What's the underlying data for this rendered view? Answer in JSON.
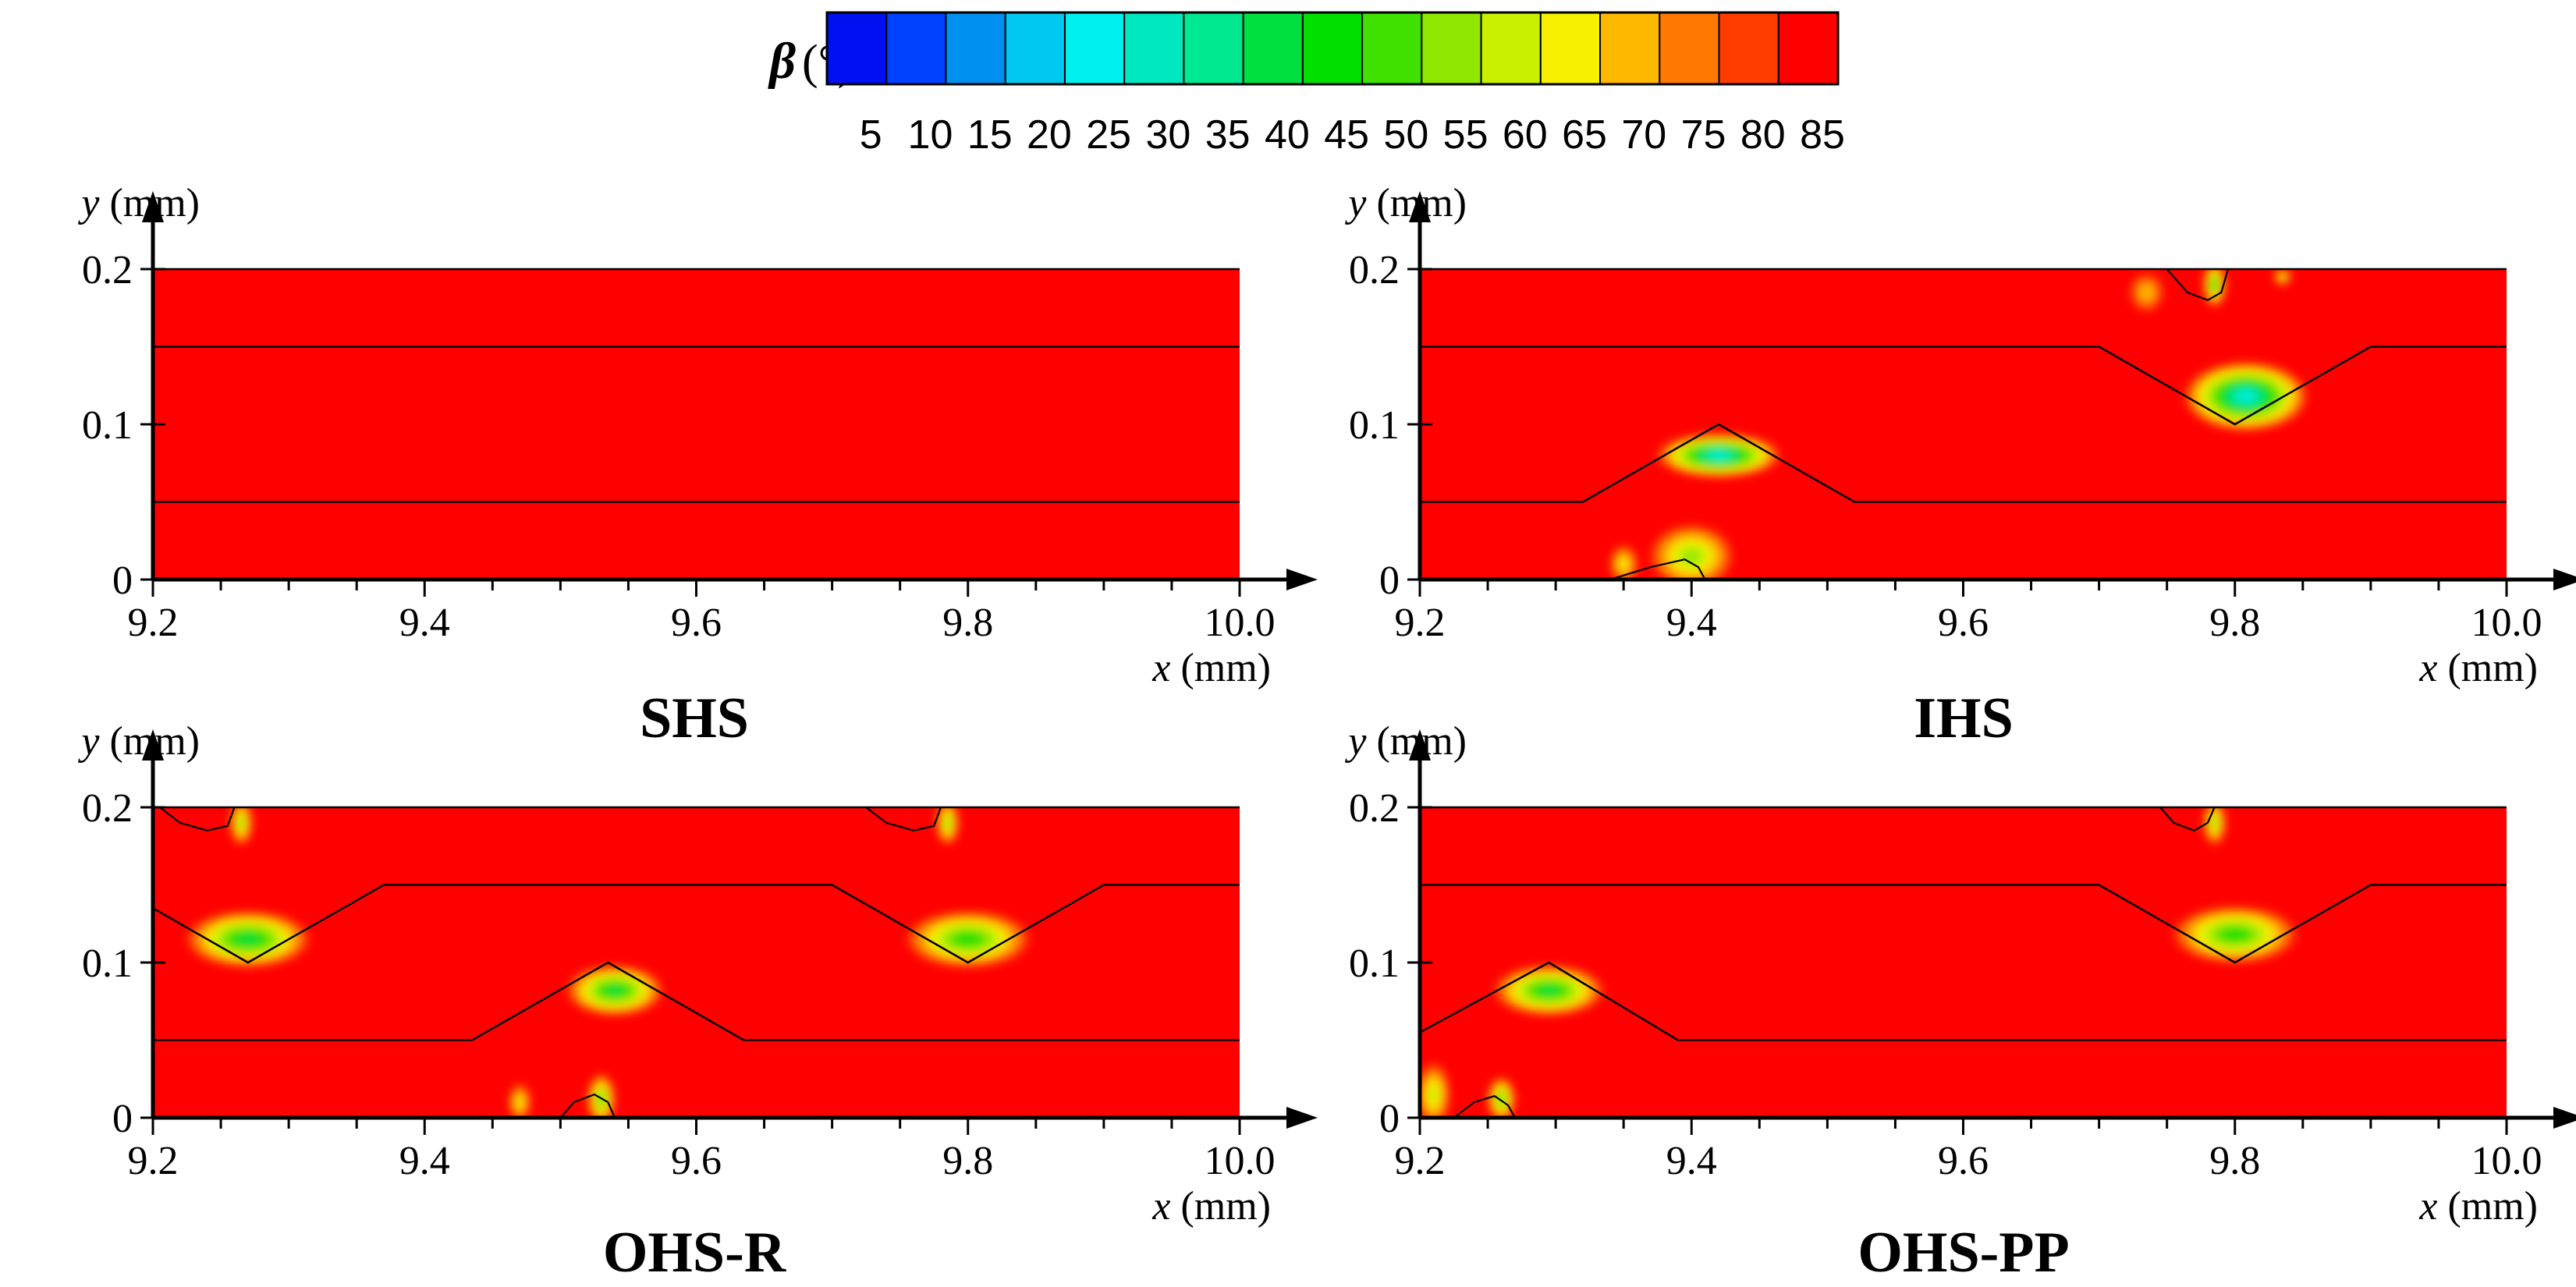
{
  "colorbar": {
    "symbol": "β",
    "unit": "(°)",
    "tick_labels": [
      "5",
      "10",
      "15",
      "20",
      "25",
      "30",
      "35",
      "40",
      "45",
      "50",
      "55",
      "60",
      "65",
      "70",
      "75",
      "80",
      "85"
    ],
    "colors": [
      "#0010F0",
      "#0040FF",
      "#0090F0",
      "#00C8F0",
      "#00F0F0",
      "#00E8C0",
      "#00E890",
      "#00E040",
      "#00E000",
      "#40E000",
      "#90E800",
      "#C8F000",
      "#F8F000",
      "#FFB800",
      "#FF7800",
      "#FF3C00",
      "#FF0000"
    ]
  },
  "background_color": "#FF0000",
  "chart_data": [
    {
      "type": "contour",
      "title": "SHS",
      "xlabel_symbol": "x",
      "xlabel_unit": "(mm)",
      "ylabel_symbol": "y",
      "ylabel_unit": "(mm)",
      "xlim": [
        9.2,
        10.0
      ],
      "ylim": [
        0,
        0.2
      ],
      "xticks": [
        "9.2",
        "9.4",
        "9.6",
        "9.8",
        "10.0"
      ],
      "yticks": [
        "0",
        "0.1",
        "0.2"
      ],
      "minor_x_step": 0.05,
      "interfaces": [
        [
          [
            9.2,
            0.15
          ],
          [
            10.0,
            0.15
          ]
        ],
        [
          [
            9.2,
            0.05
          ],
          [
            10.0,
            0.05
          ]
        ]
      ],
      "hotspots": [],
      "contour_lines": []
    },
    {
      "type": "contour",
      "title": "IHS",
      "xlabel_symbol": "x",
      "xlabel_unit": "(mm)",
      "ylabel_symbol": "y",
      "ylabel_unit": "(mm)",
      "xlim": [
        9.2,
        10.0
      ],
      "ylim": [
        0,
        0.2
      ],
      "xticks": [
        "9.2",
        "9.4",
        "9.6",
        "9.8",
        "10.0"
      ],
      "yticks": [
        "0",
        "0.1",
        "0.2"
      ],
      "minor_x_step": 0.05,
      "interfaces": [
        [
          [
            9.2,
            0.15
          ],
          [
            9.7,
            0.15
          ],
          [
            9.8,
            0.1
          ],
          [
            9.9,
            0.15
          ],
          [
            10.0,
            0.15
          ]
        ],
        [
          [
            9.2,
            0.05
          ],
          [
            9.32,
            0.05
          ],
          [
            9.42,
            0.1
          ],
          [
            9.52,
            0.05
          ],
          [
            10.0,
            0.05
          ]
        ]
      ],
      "hotspots": [
        {
          "x": 9.808,
          "y": 0.118,
          "rx": 0.045,
          "ry": 0.022,
          "min_beta": 25
        },
        {
          "x": 9.42,
          "y": 0.08,
          "rx": 0.045,
          "ry": 0.014,
          "min_beta": 25
        },
        {
          "x": 9.785,
          "y": 0.19,
          "rx": 0.008,
          "ry": 0.014,
          "min_beta": 45
        },
        {
          "x": 9.735,
          "y": 0.185,
          "rx": 0.012,
          "ry": 0.012,
          "min_beta": 70
        },
        {
          "x": 9.835,
          "y": 0.195,
          "rx": 0.006,
          "ry": 0.005,
          "min_beta": 55
        },
        {
          "x": 9.4,
          "y": 0.015,
          "rx": 0.03,
          "ry": 0.02,
          "min_beta": 55
        },
        {
          "x": 9.35,
          "y": 0.01,
          "rx": 0.01,
          "ry": 0.012,
          "min_beta": 65
        }
      ],
      "contour_lines": [
        [
          [
            9.34,
            0.0
          ],
          [
            9.37,
            0.008
          ],
          [
            9.395,
            0.013
          ],
          [
            9.405,
            0.008
          ],
          [
            9.41,
            0.0
          ]
        ],
        [
          [
            9.75,
            0.2
          ],
          [
            9.765,
            0.185
          ],
          [
            9.78,
            0.18
          ],
          [
            9.79,
            0.185
          ],
          [
            9.795,
            0.2
          ]
        ]
      ]
    },
    {
      "type": "contour",
      "title": "OHS-R",
      "xlabel_symbol": "x",
      "xlabel_unit": "(mm)",
      "ylabel_symbol": "y",
      "ylabel_unit": "(mm)",
      "xlim": [
        9.2,
        10.0
      ],
      "ylim": [
        0,
        0.2
      ],
      "xticks": [
        "9.2",
        "9.4",
        "9.6",
        "9.8",
        "10.0"
      ],
      "yticks": [
        "0",
        "0.1",
        "0.2"
      ],
      "minor_x_step": 0.05,
      "interfaces": [
        [
          [
            9.2,
            0.135
          ],
          [
            9.27,
            0.1
          ],
          [
            9.37,
            0.15
          ],
          [
            9.7,
            0.15
          ],
          [
            9.8,
            0.1
          ],
          [
            9.9,
            0.15
          ],
          [
            10.0,
            0.15
          ]
        ],
        [
          [
            9.2,
            0.05
          ],
          [
            9.435,
            0.05
          ],
          [
            9.535,
            0.1
          ],
          [
            9.635,
            0.05
          ],
          [
            10.0,
            0.05
          ]
        ]
      ],
      "hotspots": [
        {
          "x": 9.27,
          "y": 0.115,
          "rx": 0.045,
          "ry": 0.018,
          "min_beta": 40
        },
        {
          "x": 9.8,
          "y": 0.115,
          "rx": 0.045,
          "ry": 0.018,
          "min_beta": 45
        },
        {
          "x": 9.54,
          "y": 0.082,
          "rx": 0.035,
          "ry": 0.016,
          "min_beta": 40
        },
        {
          "x": 9.265,
          "y": 0.19,
          "rx": 0.008,
          "ry": 0.014,
          "min_beta": 55
        },
        {
          "x": 9.785,
          "y": 0.19,
          "rx": 0.008,
          "ry": 0.014,
          "min_beta": 55
        },
        {
          "x": 9.53,
          "y": 0.012,
          "rx": 0.01,
          "ry": 0.016,
          "min_beta": 50
        },
        {
          "x": 9.47,
          "y": 0.01,
          "rx": 0.008,
          "ry": 0.012,
          "min_beta": 65
        }
      ],
      "contour_lines": [
        [
          [
            9.205,
            0.2
          ],
          [
            9.22,
            0.19
          ],
          [
            9.24,
            0.185
          ],
          [
            9.255,
            0.188
          ],
          [
            9.26,
            0.2
          ]
        ],
        [
          [
            9.725,
            0.2
          ],
          [
            9.74,
            0.19
          ],
          [
            9.76,
            0.185
          ],
          [
            9.775,
            0.188
          ],
          [
            9.78,
            0.2
          ]
        ],
        [
          [
            9.5,
            0.0
          ],
          [
            9.51,
            0.01
          ],
          [
            9.525,
            0.015
          ],
          [
            9.535,
            0.01
          ],
          [
            9.54,
            0.0
          ]
        ]
      ]
    },
    {
      "type": "contour",
      "title": "OHS-PP",
      "xlabel_symbol": "x",
      "xlabel_unit": "(mm)",
      "ylabel_symbol": "y",
      "ylabel_unit": "(mm)",
      "xlim": [
        9.2,
        10.0
      ],
      "ylim": [
        0,
        0.2
      ],
      "xticks": [
        "9.2",
        "9.4",
        "9.6",
        "9.8",
        "10.0"
      ],
      "yticks": [
        "0",
        "0.1",
        "0.2"
      ],
      "minor_x_step": 0.05,
      "interfaces": [
        [
          [
            9.2,
            0.15
          ],
          [
            9.7,
            0.15
          ],
          [
            9.8,
            0.1
          ],
          [
            9.9,
            0.15
          ],
          [
            10.0,
            0.15
          ]
        ],
        [
          [
            9.2,
            0.055
          ],
          [
            9.295,
            0.1
          ],
          [
            9.39,
            0.05
          ],
          [
            10.0,
            0.05
          ]
        ]
      ],
      "hotspots": [
        {
          "x": 9.295,
          "y": 0.082,
          "rx": 0.04,
          "ry": 0.016,
          "min_beta": 40
        },
        {
          "x": 9.8,
          "y": 0.118,
          "rx": 0.045,
          "ry": 0.018,
          "min_beta": 45
        },
        {
          "x": 9.785,
          "y": 0.19,
          "rx": 0.008,
          "ry": 0.014,
          "min_beta": 55
        },
        {
          "x": 9.21,
          "y": 0.015,
          "rx": 0.012,
          "ry": 0.02,
          "min_beta": 60
        },
        {
          "x": 9.26,
          "y": 0.012,
          "rx": 0.01,
          "ry": 0.014,
          "min_beta": 50
        }
      ],
      "contour_lines": [
        [
          [
            9.745,
            0.2
          ],
          [
            9.755,
            0.19
          ],
          [
            9.77,
            0.185
          ],
          [
            9.78,
            0.19
          ],
          [
            9.785,
            0.2
          ]
        ],
        [
          [
            9.225,
            0.0
          ],
          [
            9.24,
            0.01
          ],
          [
            9.255,
            0.014
          ],
          [
            9.265,
            0.008
          ],
          [
            9.27,
            0.0
          ]
        ]
      ]
    }
  ]
}
